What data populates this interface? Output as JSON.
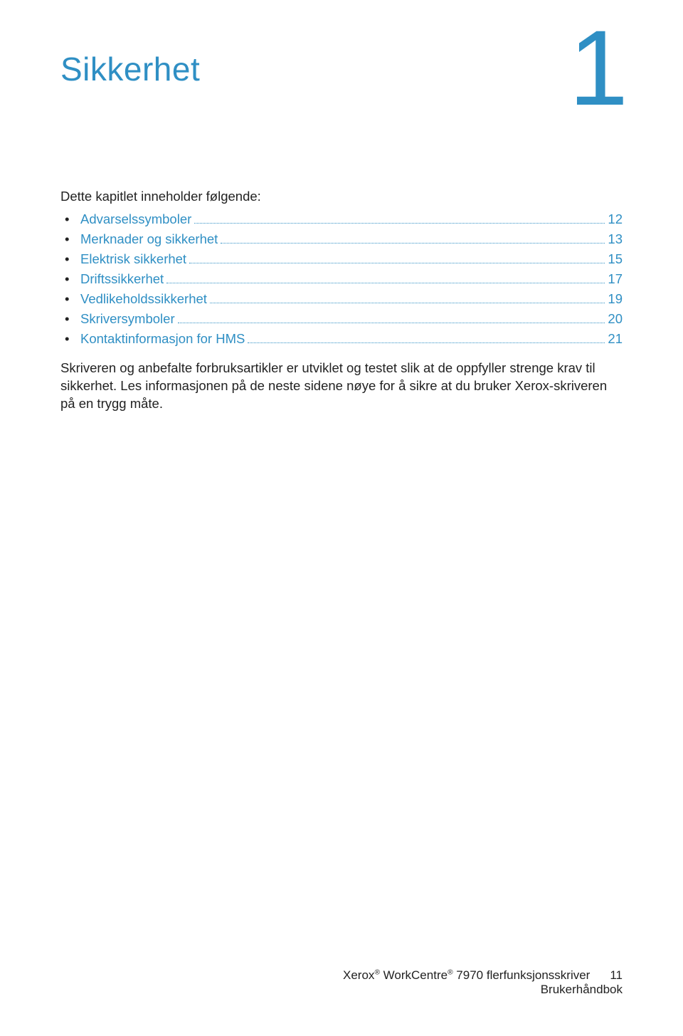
{
  "colors": {
    "accent": "#2f8fc4",
    "text": "#222222",
    "background": "#ffffff"
  },
  "typography": {
    "title_fontsize": 46,
    "chapter_number_fontsize": 150,
    "body_fontsize": 18.5,
    "footer_fontsize": 17
  },
  "chapter": {
    "title": "Sikkerhet",
    "number": "1"
  },
  "intro": "Dette kapitlet inneholder følgende:",
  "toc": [
    {
      "label": "Advarselssymboler",
      "page": "12"
    },
    {
      "label": "Merknader og sikkerhet",
      "page": "13"
    },
    {
      "label": "Elektrisk sikkerhet",
      "page": "15"
    },
    {
      "label": "Driftssikkerhet",
      "page": "17"
    },
    {
      "label": "Vedlikeholdssikkerhet",
      "page": "19"
    },
    {
      "label": "Skriversymboler",
      "page": "20"
    },
    {
      "label": "Kontaktinformasjon for HMS",
      "page": "21"
    }
  ],
  "paragraph": "Skriveren og anbefalte forbruksartikler er utviklet og testet slik at de oppfyller strenge krav til sikkerhet. Les informasjonen på de neste sidene nøye for å sikre at du bruker Xerox-skriveren på en trygg måte.",
  "footer": {
    "brand_prefix": "Xerox",
    "brand_mid": " WorkCentre",
    "brand_suffix": " 7970 flerfunksjonsskriver",
    "line2": "Brukerhåndbok",
    "page_number": "11"
  }
}
